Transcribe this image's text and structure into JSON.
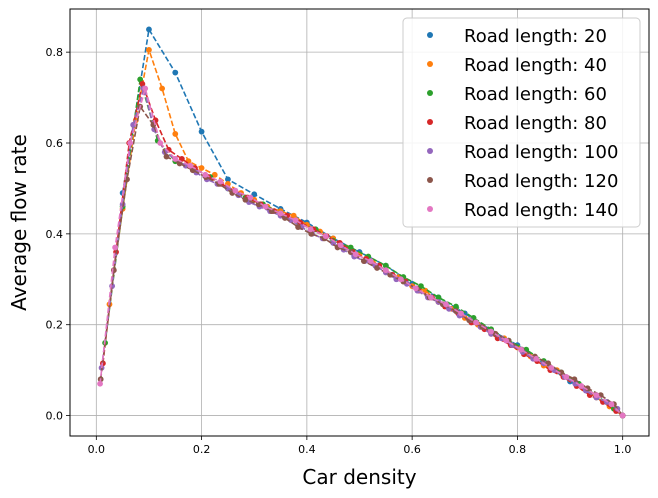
{
  "chart_data": {
    "type": "line",
    "xlabel": "Car density",
    "ylabel": "Average flow rate",
    "xlim": [
      -0.05,
      1.05
    ],
    "ylim": [
      -0.045,
      0.895
    ],
    "xticks": [
      0.0,
      0.2,
      0.4,
      0.6,
      0.8,
      1.0
    ],
    "xtick_labels": [
      "0.0",
      "0.2",
      "0.4",
      "0.6",
      "0.8",
      "1.0"
    ],
    "yticks": [
      0.0,
      0.2,
      0.4,
      0.6,
      0.8
    ],
    "ytick_labels": [
      "0.0",
      "0.2",
      "0.4",
      "0.6",
      "0.8"
    ],
    "grid": true,
    "legend_position": "top-right",
    "series": [
      {
        "name": "Road length: 20",
        "color": "#1f77b4",
        "x": [
          0.05,
          0.1,
          0.15,
          0.2,
          0.25,
          0.3,
          0.35,
          0.4,
          0.45,
          0.5,
          0.55,
          0.6,
          0.65,
          0.7,
          0.75,
          0.8,
          0.85,
          0.9,
          0.95,
          1.0
        ],
        "y": [
          0.49,
          0.85,
          0.755,
          0.625,
          0.52,
          0.487,
          0.455,
          0.425,
          0.39,
          0.36,
          0.33,
          0.29,
          0.26,
          0.225,
          0.188,
          0.155,
          0.115,
          0.075,
          0.04,
          0.0
        ]
      },
      {
        "name": "Road length: 40",
        "color": "#ff7f0e",
        "x": [
          0.025,
          0.05,
          0.075,
          0.1,
          0.125,
          0.15,
          0.175,
          0.2,
          0.225,
          0.25,
          0.275,
          0.3,
          0.325,
          0.35,
          0.375,
          0.4,
          0.425,
          0.45,
          0.475,
          0.5,
          0.525,
          0.55,
          0.575,
          0.6,
          0.625,
          0.65,
          0.675,
          0.7,
          0.725,
          0.75,
          0.775,
          0.8,
          0.825,
          0.85,
          0.875,
          0.9,
          0.925,
          0.95,
          0.975,
          1.0
        ],
        "y": [
          0.245,
          0.455,
          0.65,
          0.805,
          0.72,
          0.62,
          0.56,
          0.545,
          0.53,
          0.51,
          0.49,
          0.475,
          0.46,
          0.45,
          0.44,
          0.42,
          0.405,
          0.39,
          0.37,
          0.355,
          0.34,
          0.32,
          0.305,
          0.285,
          0.275,
          0.25,
          0.235,
          0.215,
          0.2,
          0.18,
          0.17,
          0.15,
          0.13,
          0.11,
          0.1,
          0.08,
          0.06,
          0.04,
          0.02,
          0.0
        ]
      },
      {
        "name": "Road length: 60",
        "color": "#2ca02c",
        "x": [
          0.0167,
          0.05,
          0.0833,
          0.1167,
          0.15,
          0.1833,
          0.2167,
          0.25,
          0.2833,
          0.3167,
          0.35,
          0.3833,
          0.4167,
          0.45,
          0.4833,
          0.5167,
          0.55,
          0.5833,
          0.6167,
          0.65,
          0.6833,
          0.7167,
          0.75,
          0.7833,
          0.8167,
          0.85,
          0.8833,
          0.9167,
          0.95,
          0.9833,
          1.0
        ],
        "y": [
          0.16,
          0.46,
          0.74,
          0.605,
          0.56,
          0.545,
          0.525,
          0.5,
          0.48,
          0.465,
          0.445,
          0.425,
          0.41,
          0.385,
          0.37,
          0.35,
          0.33,
          0.305,
          0.285,
          0.26,
          0.24,
          0.215,
          0.19,
          0.165,
          0.145,
          0.12,
          0.095,
          0.07,
          0.045,
          0.015,
          0.0
        ]
      },
      {
        "name": "Road length: 80",
        "color": "#d62728",
        "x": [
          0.0125,
          0.0375,
          0.0625,
          0.0875,
          0.1125,
          0.1375,
          0.1625,
          0.1875,
          0.2125,
          0.2375,
          0.2625,
          0.2875,
          0.3125,
          0.3375,
          0.3625,
          0.3875,
          0.4125,
          0.4375,
          0.4625,
          0.4875,
          0.5125,
          0.5375,
          0.5625,
          0.5875,
          0.6125,
          0.6375,
          0.6625,
          0.6875,
          0.7125,
          0.7375,
          0.7625,
          0.7875,
          0.8125,
          0.8375,
          0.8625,
          0.8875,
          0.9125,
          0.9375,
          0.9625,
          0.9875,
          1.0
        ],
        "y": [
          0.115,
          0.36,
          0.6,
          0.73,
          0.65,
          0.585,
          0.565,
          0.545,
          0.525,
          0.51,
          0.495,
          0.48,
          0.465,
          0.45,
          0.44,
          0.425,
          0.41,
          0.395,
          0.38,
          0.36,
          0.345,
          0.33,
          0.31,
          0.295,
          0.275,
          0.26,
          0.24,
          0.225,
          0.205,
          0.19,
          0.17,
          0.155,
          0.135,
          0.12,
          0.1,
          0.085,
          0.065,
          0.045,
          0.03,
          0.01,
          0.0
        ]
      },
      {
        "name": "Road length: 100",
        "color": "#9467bd",
        "x": [
          0.01,
          0.03,
          0.05,
          0.07,
          0.09,
          0.11,
          0.13,
          0.15,
          0.17,
          0.19,
          0.21,
          0.23,
          0.25,
          0.27,
          0.29,
          0.31,
          0.33,
          0.35,
          0.37,
          0.39,
          0.41,
          0.43,
          0.45,
          0.47,
          0.49,
          0.51,
          0.53,
          0.55,
          0.57,
          0.59,
          0.61,
          0.63,
          0.65,
          0.67,
          0.69,
          0.71,
          0.73,
          0.75,
          0.77,
          0.79,
          0.81,
          0.83,
          0.85,
          0.87,
          0.89,
          0.91,
          0.93,
          0.95,
          0.97,
          0.99,
          1.0
        ],
        "y": [
          0.105,
          0.285,
          0.465,
          0.64,
          0.72,
          0.63,
          0.58,
          0.565,
          0.55,
          0.535,
          0.52,
          0.51,
          0.5,
          0.485,
          0.47,
          0.46,
          0.45,
          0.44,
          0.43,
          0.415,
          0.4,
          0.39,
          0.38,
          0.365,
          0.35,
          0.34,
          0.33,
          0.315,
          0.3,
          0.29,
          0.275,
          0.26,
          0.25,
          0.235,
          0.22,
          0.21,
          0.195,
          0.18,
          0.17,
          0.155,
          0.14,
          0.125,
          0.115,
          0.1,
          0.085,
          0.07,
          0.055,
          0.04,
          0.03,
          0.015,
          0.0
        ]
      },
      {
        "name": "Road length: 120",
        "color": "#8c564b",
        "x": [
          0.0083,
          0.0333,
          0.0583,
          0.0833,
          0.1083,
          0.1333,
          0.1583,
          0.1833,
          0.2083,
          0.2333,
          0.2583,
          0.2833,
          0.3083,
          0.3333,
          0.3583,
          0.3833,
          0.4083,
          0.4333,
          0.4583,
          0.4833,
          0.5083,
          0.5333,
          0.5583,
          0.5833,
          0.6083,
          0.6333,
          0.6583,
          0.6833,
          0.7083,
          0.7333,
          0.7583,
          0.7833,
          0.8083,
          0.8333,
          0.8583,
          0.8833,
          0.9083,
          0.9333,
          0.9583,
          0.9833,
          1.0
        ],
        "y": [
          0.08,
          0.32,
          0.52,
          0.68,
          0.64,
          0.57,
          0.555,
          0.54,
          0.525,
          0.51,
          0.49,
          0.475,
          0.465,
          0.45,
          0.435,
          0.415,
          0.4,
          0.39,
          0.37,
          0.36,
          0.34,
          0.325,
          0.31,
          0.295,
          0.28,
          0.26,
          0.245,
          0.23,
          0.21,
          0.195,
          0.18,
          0.165,
          0.145,
          0.13,
          0.115,
          0.095,
          0.08,
          0.06,
          0.045,
          0.025,
          0.0
        ]
      },
      {
        "name": "Road length: 140",
        "color": "#e377c2",
        "x": [
          0.0071,
          0.0357,
          0.0643,
          0.0929,
          0.1214,
          0.15,
          0.1786,
          0.2071,
          0.2357,
          0.2643,
          0.2929,
          0.3214,
          0.35,
          0.3786,
          0.4071,
          0.4357,
          0.4643,
          0.4929,
          0.5214,
          0.55,
          0.5786,
          0.6071,
          0.6357,
          0.6643,
          0.6929,
          0.7214,
          0.75,
          0.7786,
          0.8071,
          0.8357,
          0.8643,
          0.8929,
          0.9214,
          0.95,
          0.9786,
          1.0
        ],
        "y": [
          0.07,
          0.37,
          0.6,
          0.72,
          0.6,
          0.565,
          0.55,
          0.53,
          0.515,
          0.495,
          0.48,
          0.46,
          0.445,
          0.43,
          0.41,
          0.395,
          0.375,
          0.355,
          0.34,
          0.32,
          0.3,
          0.28,
          0.26,
          0.245,
          0.225,
          0.205,
          0.185,
          0.165,
          0.145,
          0.125,
          0.105,
          0.085,
          0.065,
          0.045,
          0.025,
          0.0
        ]
      }
    ]
  }
}
